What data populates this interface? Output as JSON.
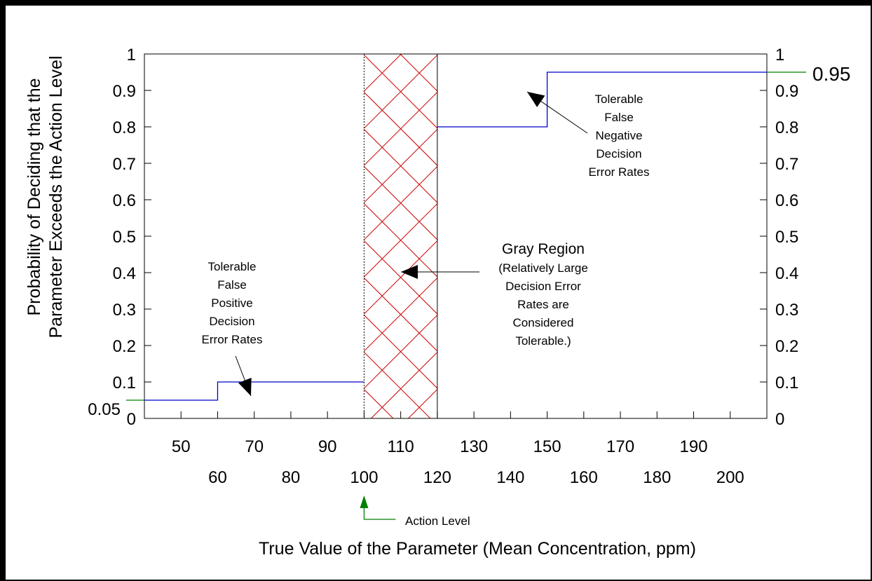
{
  "chart_data": {
    "type": "line",
    "xlabel": "True Value of  the Parameter (Mean Concentration, ppm)",
    "ylabel_line1": "Probability of Deciding that the",
    "ylabel_line2": "Parameter Exceeds the Action Level",
    "xlim": [
      40,
      210
    ],
    "ylim": [
      0,
      1
    ],
    "x_ticks": [
      50,
      60,
      70,
      80,
      90,
      100,
      110,
      120,
      130,
      140,
      150,
      160,
      170,
      180,
      190,
      200
    ],
    "x_tick_labels_row1": [
      "50",
      "70",
      "90",
      "110",
      "130",
      "150",
      "170",
      "190"
    ],
    "x_tick_labels_row2": [
      "60",
      "80",
      "100",
      "120",
      "140",
      "160",
      "180",
      "200"
    ],
    "y_ticks": [
      0,
      0.1,
      0.2,
      0.3,
      0.4,
      0.5,
      0.6,
      0.7,
      0.8,
      0.9,
      1
    ],
    "y_tick_labels": [
      "0",
      "0.1",
      "0.2",
      "0.3",
      "0.4",
      "0.5",
      "0.6",
      "0.7",
      "0.8",
      "0.9",
      "1"
    ],
    "grid": false,
    "series": [
      {
        "color": "#0000cc",
        "points": [
          [
            40,
            0.05
          ],
          [
            60,
            0.05
          ],
          [
            60,
            0.1
          ],
          [
            100,
            0.1
          ]
        ]
      },
      {
        "color": "#0000cc",
        "points": [
          [
            120,
            0.8
          ],
          [
            150,
            0.8
          ],
          [
            150,
            0.95
          ],
          [
            210,
            0.95
          ]
        ]
      }
    ],
    "gray_region": {
      "x": [
        100,
        120
      ],
      "hatch_color": "#cc0000"
    },
    "action_level_x": 100,
    "markers": {
      "left_value_label": "0.05",
      "left_value": 0.05,
      "right_value_label": "0.95",
      "right_value": 0.95,
      "marker_color": "#008000"
    },
    "annotations": {
      "false_positive": [
        "Tolerable",
        "False",
        "Positive",
        "Decision",
        "Error Rates"
      ],
      "false_negative": [
        "Tolerable",
        "False",
        "Negative",
        "Decision",
        "Error Rates"
      ],
      "gray_region_title": "Gray Region",
      "gray_region_body": [
        "(Relatively Large",
        "Decision Error",
        "Rates are",
        "Considered",
        "Tolerable.)"
      ],
      "action_level": "Action Level"
    }
  }
}
